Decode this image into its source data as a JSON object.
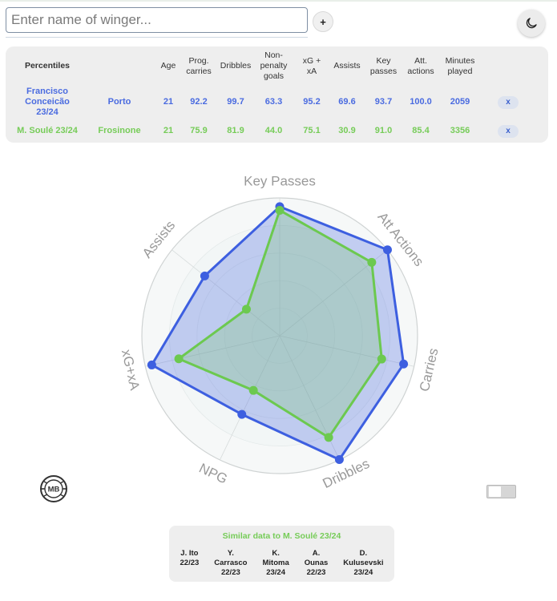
{
  "search": {
    "placeholder": "Enter name of winger...",
    "value": ""
  },
  "add_button": "+",
  "table": {
    "corner": "Percentiles",
    "headers": [
      "Age",
      "Prog.\ncarries",
      "Dribbles",
      "Non-\npenalty\ngoals",
      "xG +\nxA",
      "Assists",
      "Key\npasses",
      "Att.\nactions",
      "Minutes\nplayed"
    ],
    "rows": [
      {
        "player": "Francisco\nConceicão\n23/24",
        "team": "Porto",
        "values": [
          "21",
          "92.2",
          "99.7",
          "63.3",
          "95.2",
          "69.6",
          "93.7",
          "100.0",
          "2059"
        ],
        "color": "#4a6be0",
        "remove": "x"
      },
      {
        "player": "M. Soulé 23/24",
        "team": "Frosinone",
        "values": [
          "21",
          "75.9",
          "81.9",
          "44.0",
          "75.1",
          "30.9",
          "91.0",
          "85.4",
          "3356"
        ],
        "color": "#76cc58",
        "remove": "x"
      }
    ]
  },
  "radar": {
    "axes": [
      "Key Passes",
      "Att Actions",
      "Carries",
      "Dribbles",
      "NPG",
      "xG+xA",
      "Assists"
    ],
    "series": [
      {
        "color": "#3d5fe0",
        "values": [
          93.7,
          100.0,
          92.2,
          99.7,
          63.3,
          95.2,
          69.6
        ]
      },
      {
        "color": "#6cc94f",
        "values": [
          91.0,
          85.4,
          75.9,
          81.9,
          44.0,
          75.1,
          30.9
        ]
      }
    ]
  },
  "logo_text": "MB",
  "similar": {
    "title": "Similar data to M. Soulé 23/24",
    "items": [
      {
        "name": "J. Ito",
        "season": "22/23"
      },
      {
        "name": "Y.\nCarrasco",
        "season": "22/23"
      },
      {
        "name": "K.\nMitoma",
        "season": "23/24"
      },
      {
        "name": "A.\nOunas",
        "season": "22/23"
      },
      {
        "name": "D.\nKulusevski",
        "season": "23/24"
      }
    ]
  }
}
